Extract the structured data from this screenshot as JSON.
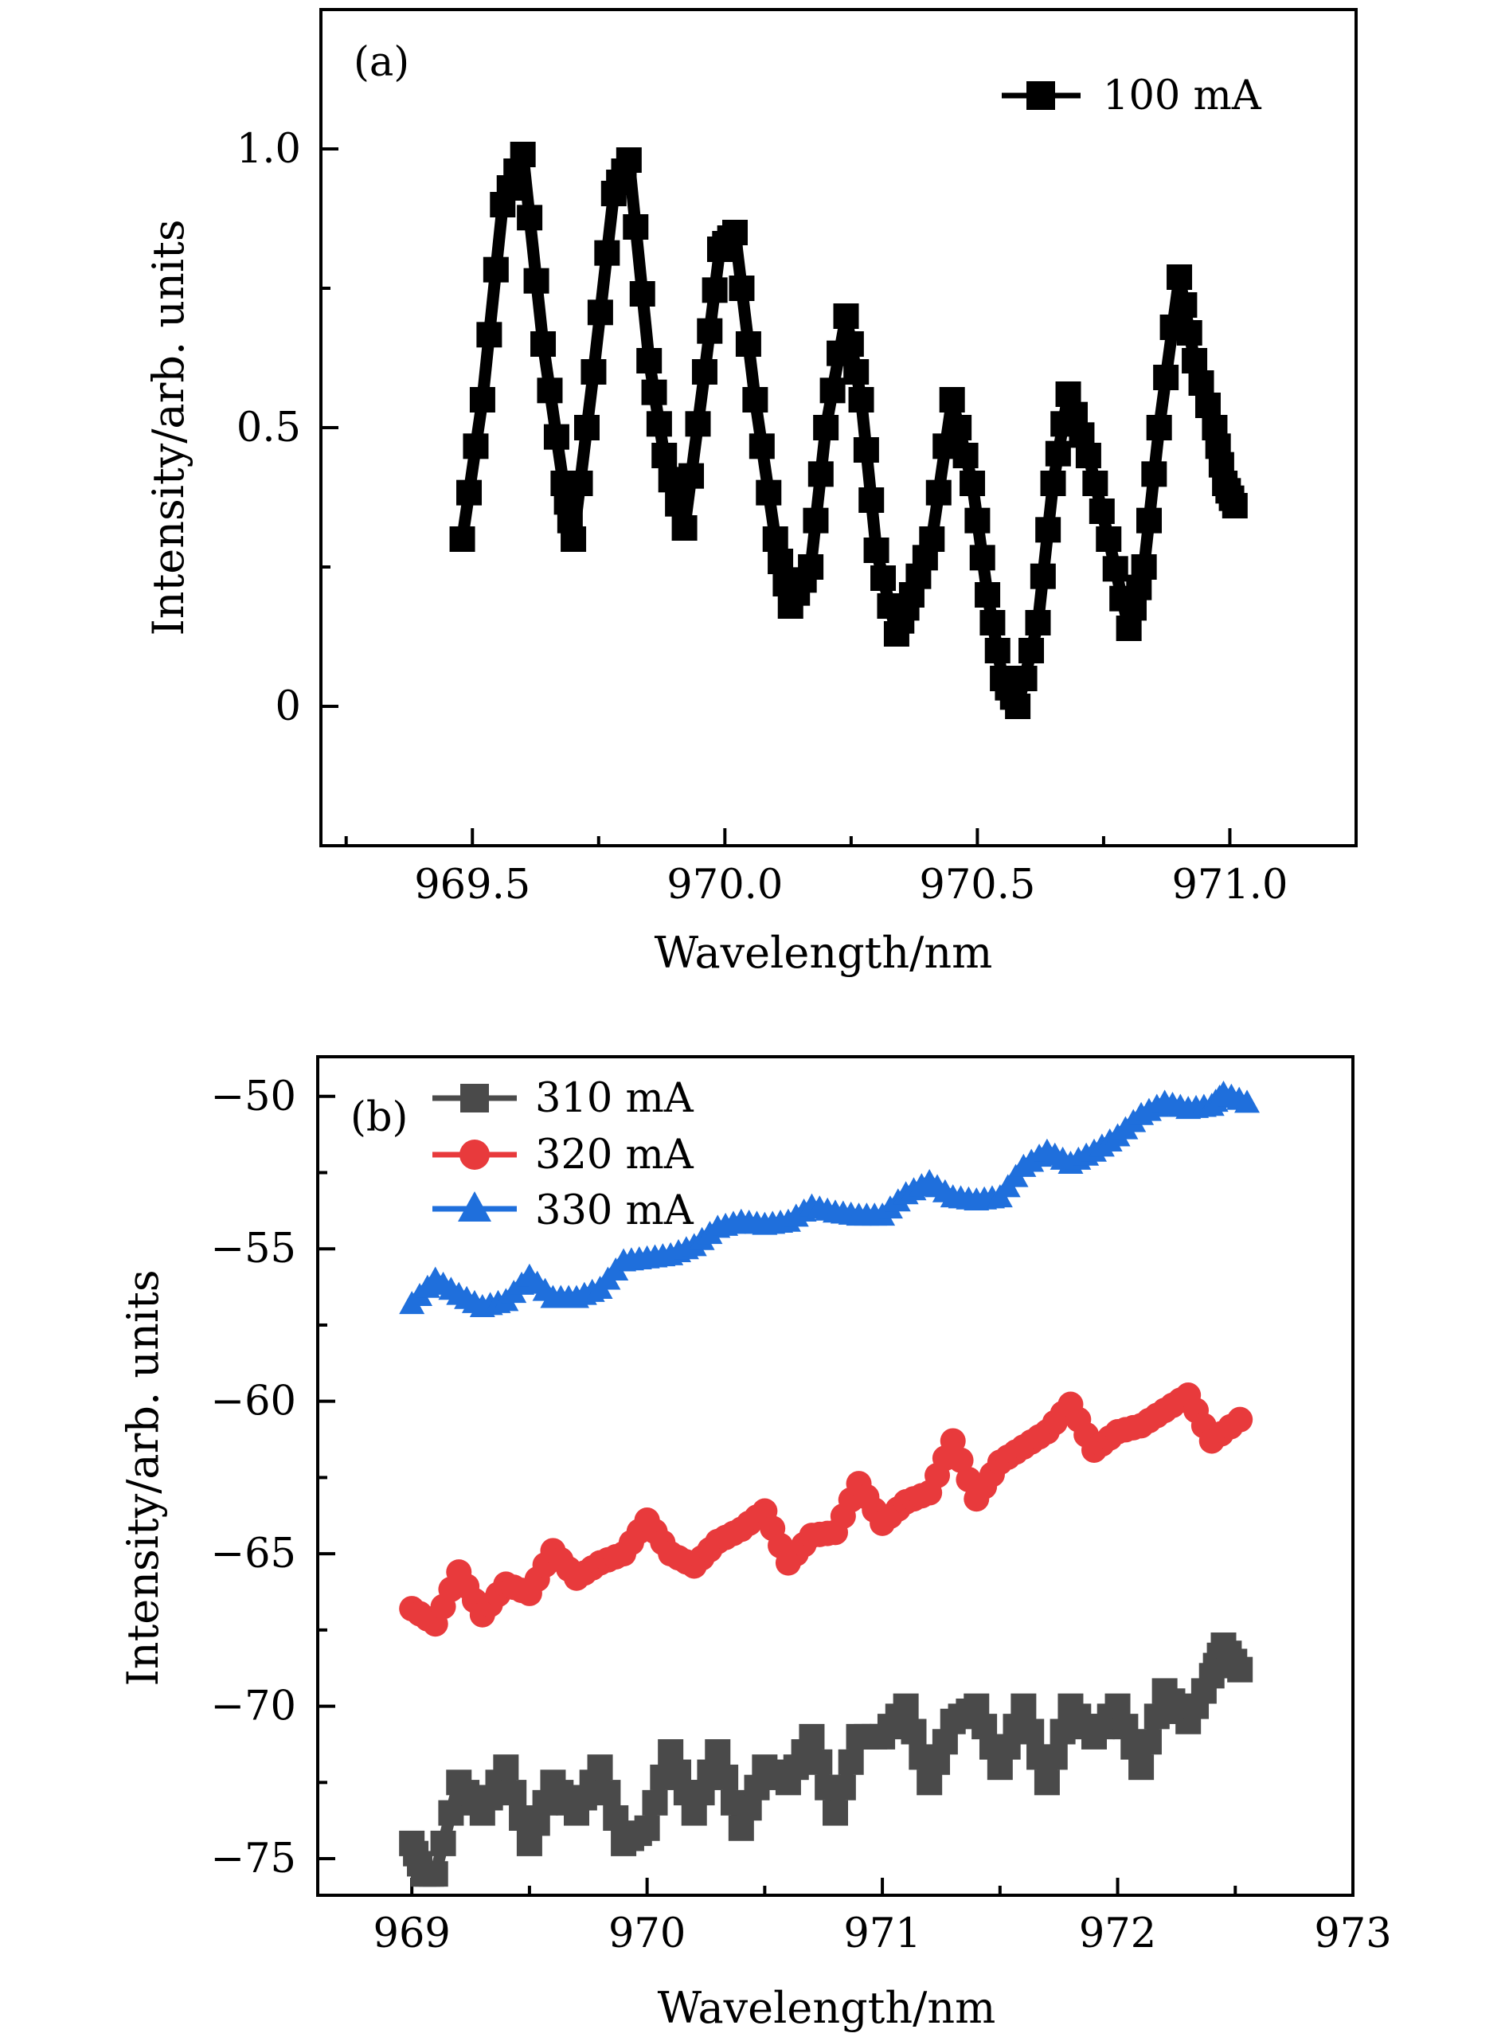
{
  "chart_data": [
    {
      "panel_label": "(a)",
      "type": "line",
      "xlabel": "Wavelength/nm",
      "ylabel": "Intensity/arb. units",
      "xlim": [
        969.2,
        971.25
      ],
      "ylim": [
        -0.25,
        1.25
      ],
      "xticks": [
        969.5,
        970.0,
        970.5,
        971.0
      ],
      "xtick_labels": [
        "969.5",
        "970.0",
        "970.5",
        "971.0"
      ],
      "yticks": [
        0,
        0.5,
        1.0
      ],
      "ytick_labels": [
        "0",
        "0.5",
        "1.0"
      ],
      "legend_position": "top-right",
      "series": [
        {
          "name": "100 mA",
          "color": "#000000",
          "marker": "square",
          "x": [
            969.48,
            969.52,
            969.56,
            969.6,
            969.64,
            969.68,
            969.7,
            969.74,
            969.78,
            969.81,
            969.85,
            969.88,
            969.92,
            969.96,
            969.99,
            970.02,
            970.06,
            970.1,
            970.13,
            970.17,
            970.2,
            970.24,
            970.27,
            970.3,
            970.34,
            970.37,
            970.41,
            970.45,
            970.49,
            970.52,
            970.55,
            970.58,
            970.62,
            970.65,
            970.68,
            970.72,
            970.76,
            970.8,
            970.83,
            970.86,
            970.9,
            970.93,
            970.97,
            970.99,
            971.01
          ],
          "y": [
            0.3,
            0.55,
            0.9,
            0.99,
            0.65,
            0.4,
            0.3,
            0.6,
            0.92,
            0.98,
            0.62,
            0.45,
            0.32,
            0.6,
            0.82,
            0.85,
            0.55,
            0.3,
            0.18,
            0.25,
            0.5,
            0.7,
            0.55,
            0.28,
            0.13,
            0.2,
            0.3,
            0.55,
            0.4,
            0.2,
            0.05,
            0.0,
            0.15,
            0.4,
            0.56,
            0.45,
            0.3,
            0.14,
            0.25,
            0.5,
            0.77,
            0.62,
            0.5,
            0.4,
            0.36
          ]
        }
      ]
    },
    {
      "panel_label": "(b)",
      "type": "line",
      "xlabel": "Wavelength/nm",
      "ylabel": "Intensity/arb. units",
      "xlim": [
        968.6,
        973.0
      ],
      "ylim": [
        -76.2,
        -48.7
      ],
      "xticks": [
        969,
        970,
        971,
        972,
        973
      ],
      "xtick_labels": [
        "969",
        "970",
        "971",
        "972",
        "973"
      ],
      "yticks": [
        -50,
        -55,
        -60,
        -65,
        -70,
        -75
      ],
      "ytick_labels": [
        "−50",
        "−55",
        "−60",
        "−65",
        "−70",
        "−75"
      ],
      "legend_position": "top-left",
      "series": [
        {
          "name": "310 mA",
          "color": "#4a4a4a",
          "marker": "square",
          "x": [
            969.0,
            969.05,
            969.1,
            969.2,
            969.3,
            969.4,
            969.5,
            969.6,
            969.7,
            969.8,
            969.9,
            970.0,
            970.1,
            970.2,
            970.3,
            970.4,
            970.5,
            970.6,
            970.7,
            970.8,
            970.9,
            971.0,
            971.1,
            971.2,
            971.3,
            971.4,
            971.5,
            971.6,
            971.7,
            971.8,
            971.9,
            972.0,
            972.1,
            972.2,
            972.3,
            972.4,
            972.45,
            972.52
          ],
          "y": [
            -74.5,
            -75.5,
            -75.5,
            -72.5,
            -73.5,
            -72.0,
            -74.5,
            -72.5,
            -73.5,
            -72.0,
            -74.5,
            -74.0,
            -71.5,
            -73.5,
            -71.5,
            -74.0,
            -72.0,
            -72.5,
            -71.0,
            -73.5,
            -71.0,
            -71.0,
            -70.0,
            -72.5,
            -70.5,
            -70.0,
            -72.0,
            -70.0,
            -72.5,
            -70.0,
            -71.0,
            -70.0,
            -72.0,
            -69.5,
            -70.5,
            -69.0,
            -68.0,
            -68.8
          ]
        },
        {
          "name": "320 mA",
          "color": "#e83a3c",
          "marker": "circle",
          "x": [
            969.0,
            969.1,
            969.2,
            969.3,
            969.4,
            969.5,
            969.6,
            969.7,
            969.8,
            969.9,
            970.0,
            970.1,
            970.2,
            970.3,
            970.4,
            970.5,
            970.6,
            970.7,
            970.8,
            970.9,
            971.0,
            971.1,
            971.2,
            971.3,
            971.4,
            971.5,
            971.6,
            971.7,
            971.8,
            971.9,
            972.0,
            972.1,
            972.2,
            972.3,
            972.4,
            972.52
          ],
          "y": [
            -66.8,
            -67.3,
            -65.6,
            -67.0,
            -66.0,
            -66.3,
            -64.9,
            -65.8,
            -65.3,
            -65.0,
            -63.9,
            -65.0,
            -65.4,
            -64.6,
            -64.2,
            -63.6,
            -65.3,
            -64.4,
            -64.3,
            -62.7,
            -64.0,
            -63.3,
            -63.0,
            -61.3,
            -63.2,
            -62.0,
            -61.5,
            -61.0,
            -60.1,
            -61.6,
            -61.0,
            -60.8,
            -60.3,
            -59.8,
            -61.3,
            -60.6
          ]
        },
        {
          "name": "330 mA",
          "color": "#1f6fdc",
          "marker": "triangle",
          "x": [
            969.0,
            969.1,
            969.2,
            969.3,
            969.4,
            969.5,
            969.6,
            969.7,
            969.8,
            969.9,
            970.0,
            970.1,
            970.2,
            970.3,
            970.4,
            970.5,
            970.6,
            970.7,
            970.8,
            970.9,
            971.0,
            971.1,
            971.2,
            971.3,
            971.4,
            971.5,
            971.6,
            971.7,
            971.8,
            971.9,
            972.0,
            972.1,
            972.2,
            972.3,
            972.4,
            972.45,
            972.55
          ],
          "y": [
            -56.8,
            -56.0,
            -56.5,
            -56.9,
            -56.7,
            -55.9,
            -56.6,
            -56.6,
            -56.3,
            -55.4,
            -55.3,
            -55.2,
            -54.9,
            -54.3,
            -54.1,
            -54.2,
            -54.1,
            -53.6,
            -53.8,
            -53.9,
            -53.9,
            -53.2,
            -52.8,
            -53.3,
            -53.4,
            -53.3,
            -52.3,
            -51.8,
            -52.2,
            -51.8,
            -51.3,
            -50.6,
            -50.2,
            -50.4,
            -50.3,
            -49.9,
            -50.2
          ]
        }
      ]
    }
  ]
}
